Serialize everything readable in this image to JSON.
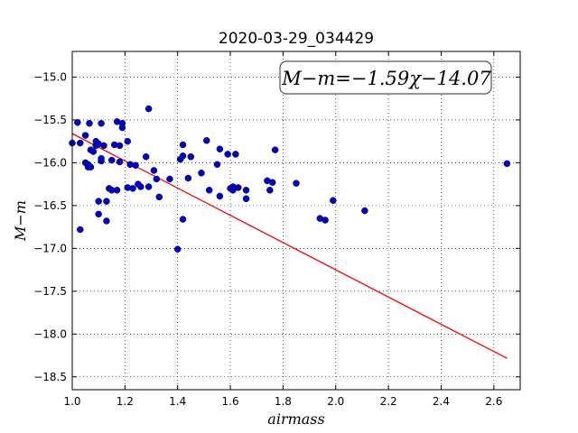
{
  "chart_data": {
    "type": "scatter",
    "title": "2020-03-29_034429",
    "xlabel": "airmass",
    "ylabel": "M−m",
    "xlim": [
      1.0,
      2.7
    ],
    "ylim": [
      -18.65,
      -14.7
    ],
    "y_inverted": true,
    "grid": true,
    "x_ticks": [
      1.0,
      1.2,
      1.4,
      1.6,
      1.8,
      2.0,
      2.2,
      2.4,
      2.6
    ],
    "x_tick_labels": [
      "1.0",
      "1.2",
      "1.4",
      "1.6",
      "1.8",
      "2.0",
      "2.2",
      "2.4",
      "2.6"
    ],
    "y_ticks": [
      -15.0,
      -15.5,
      -16.0,
      -16.5,
      -17.0,
      -17.5,
      -18.0,
      -18.5
    ],
    "y_tick_labels": [
      "−15.0",
      "−15.5",
      "−16.0",
      "−16.5",
      "−17.0",
      "−17.5",
      "−18.0",
      "−18.5"
    ],
    "annotation": "M−m=−1.59χ−14.07",
    "points_color": "#0000cc",
    "line_color": "#ff0000",
    "fit": {
      "slope": -1.59,
      "intercept": -14.07,
      "x_range": [
        1.0,
        2.65
      ]
    },
    "points": [
      [
        1.0,
        -15.77
      ],
      [
        1.02,
        -15.53
      ],
      [
        1.03,
        -15.77
      ],
      [
        1.03,
        -16.78
      ],
      [
        1.05,
        -15.68
      ],
      [
        1.05,
        -16.0
      ],
      [
        1.06,
        -16.05
      ],
      [
        1.06,
        -16.02
      ],
      [
        1.065,
        -15.54
      ],
      [
        1.07,
        -15.85
      ],
      [
        1.07,
        -16.05
      ],
      [
        1.08,
        -15.87
      ],
      [
        1.09,
        -15.8
      ],
      [
        1.09,
        -15.75
      ],
      [
        1.1,
        -16.6
      ],
      [
        1.1,
        -15.78
      ],
      [
        1.1,
        -16.45
      ],
      [
        1.11,
        -15.98
      ],
      [
        1.11,
        -15.95
      ],
      [
        1.11,
        -15.54
      ],
      [
        1.12,
        -15.8
      ],
      [
        1.13,
        -16.45
      ],
      [
        1.13,
        -16.68
      ],
      [
        1.14,
        -16.3
      ],
      [
        1.15,
        -16.32
      ],
      [
        1.15,
        -15.97
      ],
      [
        1.16,
        -15.79
      ],
      [
        1.17,
        -16.32
      ],
      [
        1.17,
        -15.52
      ],
      [
        1.18,
        -15.8
      ],
      [
        1.18,
        -15.99
      ],
      [
        1.19,
        -15.59
      ],
      [
        1.19,
        -15.54
      ],
      [
        1.21,
        -15.75
      ],
      [
        1.21,
        -16.29
      ],
      [
        1.22,
        -16.02
      ],
      [
        1.23,
        -16.3
      ],
      [
        1.24,
        -16.03
      ],
      [
        1.25,
        -16.25
      ],
      [
        1.26,
        -16.28
      ],
      [
        1.28,
        -15.93
      ],
      [
        1.29,
        -15.37
      ],
      [
        1.29,
        -16.28
      ],
      [
        1.31,
        -16.09
      ],
      [
        1.32,
        -16.19
      ],
      [
        1.33,
        -16.4
      ],
      [
        1.37,
        -16.19
      ],
      [
        1.4,
        -17.01
      ],
      [
        1.41,
        -15.96
      ],
      [
        1.42,
        -15.92
      ],
      [
        1.42,
        -15.79
      ],
      [
        1.42,
        -16.66
      ],
      [
        1.44,
        -16.18
      ],
      [
        1.45,
        -15.93
      ],
      [
        1.49,
        -16.12
      ],
      [
        1.51,
        -15.74
      ],
      [
        1.52,
        -16.32
      ],
      [
        1.55,
        -16.02
      ],
      [
        1.56,
        -15.84
      ],
      [
        1.56,
        -16.39
      ],
      [
        1.59,
        -15.9
      ],
      [
        1.6,
        -16.3
      ],
      [
        1.61,
        -16.32
      ],
      [
        1.61,
        -16.28
      ],
      [
        1.62,
        -15.9
      ],
      [
        1.63,
        -16.29
      ],
      [
        1.66,
        -16.42
      ],
      [
        1.66,
        -16.32
      ],
      [
        1.74,
        -16.21
      ],
      [
        1.75,
        -16.32
      ],
      [
        1.76,
        -16.23
      ],
      [
        1.77,
        -15.85
      ],
      [
        1.85,
        -16.24
      ],
      [
        1.94,
        -16.65
      ],
      [
        1.96,
        -16.67
      ],
      [
        1.99,
        -16.44
      ],
      [
        2.11,
        -16.56
      ],
      [
        2.65,
        -16.01
      ]
    ]
  }
}
